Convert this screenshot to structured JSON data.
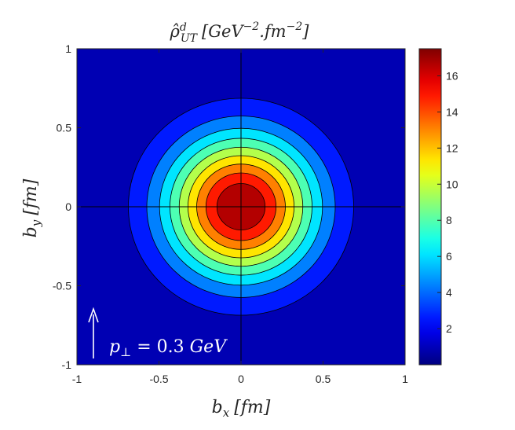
{
  "chart_data": {
    "type": "heatmap",
    "subtype": "filled-contour",
    "title": {
      "base": "ρ̂",
      "superscript": "d",
      "subscript": "UT",
      "units_part1": "[GeV",
      "units_exp1": "−2",
      "units_part2": ".fm",
      "units_exp2": "−2",
      "units_close": "]"
    },
    "xlabel": {
      "base": "b",
      "sub": "x",
      "units": "[fm]"
    },
    "ylabel": {
      "base": "b",
      "sub": "y",
      "units": "[fm]"
    },
    "xlim": [
      -1,
      1
    ],
    "ylim": [
      -1,
      1
    ],
    "xticks": [
      -1,
      -0.5,
      0,
      0.5,
      1
    ],
    "xtick_labels": [
      "-1",
      "-0.5",
      "0",
      "0.5",
      "1"
    ],
    "yticks": [
      -1,
      -0.5,
      0,
      0.5,
      1
    ],
    "ytick_labels": [
      "-1",
      "-0.5",
      "0",
      "0.5",
      "1"
    ],
    "colorbar": {
      "range": [
        0,
        17.5
      ],
      "ticks": [
        2,
        4,
        6,
        8,
        10,
        12,
        14,
        16
      ],
      "tick_labels": [
        "2",
        "4",
        "6",
        "8",
        "10",
        "12",
        "14",
        "16"
      ],
      "colormap": "jet"
    },
    "field": {
      "shape": "gaussian",
      "peak": 17.5,
      "center": [
        0,
        0
      ],
      "sigma_x": 0.32,
      "sigma_y": 0.32,
      "contour_levels": [
        1.75,
        3.5,
        5.25,
        7,
        8.75,
        10.5,
        12.25,
        14,
        15.75
      ]
    },
    "annotation": {
      "text_base": "p",
      "text_sub": "⊥",
      "text_rest": " = 0.3 ",
      "text_unit": "GeV",
      "arrow_direction": "up",
      "color": "#ffffff"
    },
    "crosshair_lines": [
      {
        "orientation": "vertical",
        "value": 0
      },
      {
        "orientation": "horizontal",
        "value": 0
      }
    ],
    "grid": false
  }
}
